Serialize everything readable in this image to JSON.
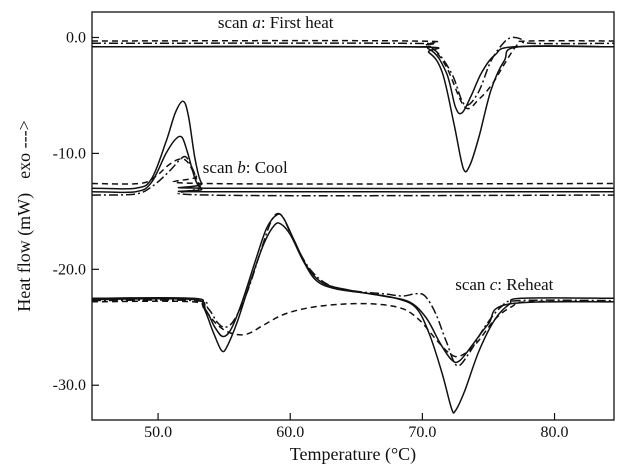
{
  "chart_data": {
    "type": "line",
    "xlabel": "Temperature (°C)",
    "ylabel": "Heat flow (mW)",
    "ylabel_suffix": "exo --->",
    "xlim": [
      45,
      84.5
    ],
    "ylim": [
      -33,
      2.2
    ],
    "x_ticks": [
      50,
      60,
      70,
      80
    ],
    "x_tick_labels": [
      "50.0",
      "60.0",
      "70.0",
      "80.0"
    ],
    "y_ticks": [
      0,
      -10,
      -20,
      -30
    ],
    "y_tick_labels": [
      "0.0",
      "-10.0",
      "-20.0",
      "-30.0"
    ],
    "grid": false,
    "annotations": [
      {
        "prefix": "scan ",
        "letter": "a",
        "suffix": ": First heat",
        "x": 58.9,
        "y": 0.8
      },
      {
        "prefix": "scan ",
        "letter": "b",
        "suffix": ": Cool",
        "x": 56.6,
        "y": -11.7
      },
      {
        "prefix": "scan ",
        "letter": "c",
        "suffix": ": Reheat",
        "x": 76.2,
        "y": -21.8
      }
    ],
    "series": [
      {
        "style": "solid",
        "points": [
          [
            45,
            -0.8
          ],
          [
            68,
            -0.8
          ],
          [
            70.5,
            -1.0
          ],
          [
            71.8,
            -3.0
          ],
          [
            72.5,
            -6.0
          ],
          [
            73,
            -6.5
          ],
          [
            73.7,
            -5.0
          ],
          [
            74.5,
            -3.0
          ],
          [
            75.5,
            -1.5
          ],
          [
            77,
            -0.8
          ],
          [
            84.5,
            -0.8
          ]
        ]
      },
      {
        "style": "solid",
        "points": [
          [
            45,
            -0.8
          ],
          [
            69,
            -0.8
          ],
          [
            70.5,
            -1.3
          ],
          [
            71.5,
            -3.0
          ],
          [
            72.4,
            -7.5
          ],
          [
            73.1,
            -11.3
          ],
          [
            73.6,
            -11.0
          ],
          [
            74.3,
            -8.5
          ],
          [
            75.2,
            -4.5
          ],
          [
            76.2,
            -2.0
          ],
          [
            77.3,
            -0.8
          ],
          [
            84.5,
            -0.8
          ]
        ]
      },
      {
        "style": "dashed",
        "points": [
          [
            45,
            -0.3
          ],
          [
            69,
            -0.3
          ],
          [
            70.5,
            -0.7
          ],
          [
            71.8,
            -2.5
          ],
          [
            73.2,
            -6.0
          ],
          [
            74.3,
            -5.3
          ],
          [
            75.3,
            -4.0
          ],
          [
            76.2,
            -2.3
          ],
          [
            77.2,
            -0.6
          ],
          [
            78,
            -0.3
          ],
          [
            84.5,
            -0.3
          ]
        ]
      },
      {
        "style": "dashdot",
        "points": [
          [
            45,
            -0.5
          ],
          [
            68.5,
            -0.5
          ],
          [
            70.3,
            -0.7
          ],
          [
            71.3,
            -1.5
          ],
          [
            72.3,
            -3.3
          ],
          [
            73.2,
            -5.8
          ],
          [
            74.2,
            -4.8
          ],
          [
            75.2,
            -2.0
          ],
          [
            76.2,
            -0.4
          ],
          [
            76.8,
            0.0
          ],
          [
            77.4,
            -0.1
          ],
          [
            78.2,
            -0.5
          ],
          [
            84.5,
            -0.5
          ]
        ]
      },
      {
        "style": "solid",
        "points": [
          [
            45,
            -13.0
          ],
          [
            48.3,
            -13.0
          ],
          [
            49.5,
            -12.2
          ],
          [
            50.6,
            -9.0
          ],
          [
            51.3,
            -6.5
          ],
          [
            51.9,
            -5.5
          ],
          [
            52.3,
            -6.8
          ],
          [
            52.8,
            -10.5
          ],
          [
            53.3,
            -12.6
          ],
          [
            54,
            -13.0
          ],
          [
            84.5,
            -13.0
          ]
        ]
      },
      {
        "style": "solid",
        "points": [
          [
            45,
            -13.3
          ],
          [
            48.3,
            -13.3
          ],
          [
            49.5,
            -12.5
          ],
          [
            50.6,
            -10.0
          ],
          [
            51.3,
            -8.8
          ],
          [
            51.8,
            -8.6
          ],
          [
            52.2,
            -9.8
          ],
          [
            52.8,
            -12.2
          ],
          [
            53.3,
            -13.1
          ],
          [
            54,
            -13.3
          ],
          [
            84.5,
            -13.3
          ]
        ]
      },
      {
        "style": "dashed",
        "points": [
          [
            45,
            -12.6
          ],
          [
            48.6,
            -12.6
          ],
          [
            49.8,
            -12.0
          ],
          [
            50.8,
            -11.0
          ],
          [
            51.6,
            -10.5
          ],
          [
            52.2,
            -10.7
          ],
          [
            52.9,
            -12.0
          ],
          [
            53.6,
            -12.6
          ],
          [
            84.5,
            -12.6
          ]
        ]
      },
      {
        "style": "dashdot",
        "points": [
          [
            45,
            -13.6
          ],
          [
            48.3,
            -13.5
          ],
          [
            49.6,
            -12.8
          ],
          [
            50.8,
            -11.6
          ],
          [
            51.6,
            -10.6
          ],
          [
            52.1,
            -10.3
          ],
          [
            52.6,
            -11.3
          ],
          [
            53.2,
            -12.9
          ],
          [
            54,
            -13.6
          ],
          [
            84.5,
            -13.6
          ]
        ]
      },
      {
        "style": "solid",
        "points": [
          [
            45,
            -22.5
          ],
          [
            52.6,
            -22.5
          ],
          [
            53.4,
            -23.2
          ],
          [
            54.2,
            -25.5
          ],
          [
            54.8,
            -27.0
          ],
          [
            55.2,
            -26.7
          ],
          [
            56,
            -24.5
          ],
          [
            57,
            -21.0
          ],
          [
            58,
            -17.8
          ],
          [
            58.8,
            -16.2
          ],
          [
            59.3,
            -16.1
          ],
          [
            60,
            -17.0
          ],
          [
            61,
            -19.3
          ],
          [
            62,
            -21.0
          ],
          [
            63.5,
            -21.7
          ],
          [
            66,
            -22.1
          ],
          [
            68,
            -22.5
          ],
          [
            69.5,
            -23.3
          ],
          [
            70.5,
            -25.5
          ],
          [
            71.5,
            -29.0
          ],
          [
            72.2,
            -32.0
          ],
          [
            72.5,
            -32.2
          ],
          [
            73.2,
            -30.5
          ],
          [
            74.3,
            -27.0
          ],
          [
            75.5,
            -24.3
          ],
          [
            76.6,
            -23.0
          ],
          [
            77.5,
            -22.5
          ],
          [
            84.5,
            -22.5
          ]
        ]
      },
      {
        "style": "solid",
        "points": [
          [
            45,
            -22.6
          ],
          [
            52.6,
            -22.6
          ],
          [
            53.6,
            -23.5
          ],
          [
            54.3,
            -25.0
          ],
          [
            54.9,
            -25.8
          ],
          [
            55.5,
            -25.2
          ],
          [
            56.3,
            -23.0
          ],
          [
            57.3,
            -19.5
          ],
          [
            58.2,
            -16.5
          ],
          [
            59,
            -15.3
          ],
          [
            59.5,
            -15.6
          ],
          [
            60.3,
            -17.5
          ],
          [
            61.3,
            -19.8
          ],
          [
            62.5,
            -21.2
          ],
          [
            64.5,
            -21.8
          ],
          [
            67,
            -22.3
          ],
          [
            69,
            -22.8
          ],
          [
            70.3,
            -24.2
          ],
          [
            71.3,
            -26.3
          ],
          [
            72.2,
            -27.8
          ],
          [
            72.8,
            -27.9
          ],
          [
            73.8,
            -26.5
          ],
          [
            75,
            -24.7
          ],
          [
            76.5,
            -23.0
          ],
          [
            84.5,
            -22.8
          ]
        ]
      },
      {
        "style": "dashed",
        "points": [
          [
            45,
            -22.8
          ],
          [
            52.6,
            -22.8
          ],
          [
            53.5,
            -23.5
          ],
          [
            54.5,
            -24.8
          ],
          [
            55.5,
            -25.5
          ],
          [
            56.7,
            -25.6
          ],
          [
            58,
            -24.8
          ],
          [
            59.5,
            -23.9
          ],
          [
            61.5,
            -23.3
          ],
          [
            64,
            -23.0
          ],
          [
            66.5,
            -23.0
          ],
          [
            68.5,
            -23.4
          ],
          [
            69.8,
            -24.4
          ],
          [
            71,
            -26.0
          ],
          [
            72,
            -27.2
          ],
          [
            72.8,
            -27.5
          ],
          [
            74,
            -26.5
          ],
          [
            75.5,
            -24.3
          ],
          [
            76.8,
            -23.2
          ],
          [
            78,
            -22.8
          ],
          [
            84.5,
            -22.8
          ]
        ]
      },
      {
        "style": "dashdot",
        "points": [
          [
            45,
            -22.7
          ],
          [
            52.8,
            -22.7
          ],
          [
            53.8,
            -23.4
          ],
          [
            54.5,
            -24.6
          ],
          [
            55.1,
            -25.0
          ],
          [
            55.8,
            -24.3
          ],
          [
            56.8,
            -21.8
          ],
          [
            57.8,
            -18.3
          ],
          [
            58.5,
            -16.0
          ],
          [
            59,
            -15.2
          ],
          [
            59.5,
            -15.6
          ],
          [
            60.3,
            -17.6
          ],
          [
            61.5,
            -20.0
          ],
          [
            63,
            -21.4
          ],
          [
            65,
            -21.9
          ],
          [
            67,
            -22.1
          ],
          [
            68.5,
            -22.3
          ],
          [
            69.5,
            -22.1
          ],
          [
            70.2,
            -22.3
          ],
          [
            71,
            -23.8
          ],
          [
            71.8,
            -26.2
          ],
          [
            72.6,
            -28.3
          ],
          [
            73.5,
            -27.3
          ],
          [
            74.7,
            -25.0
          ],
          [
            76,
            -23.2
          ],
          [
            77.3,
            -22.7
          ],
          [
            84.5,
            -22.7
          ]
        ]
      }
    ]
  }
}
